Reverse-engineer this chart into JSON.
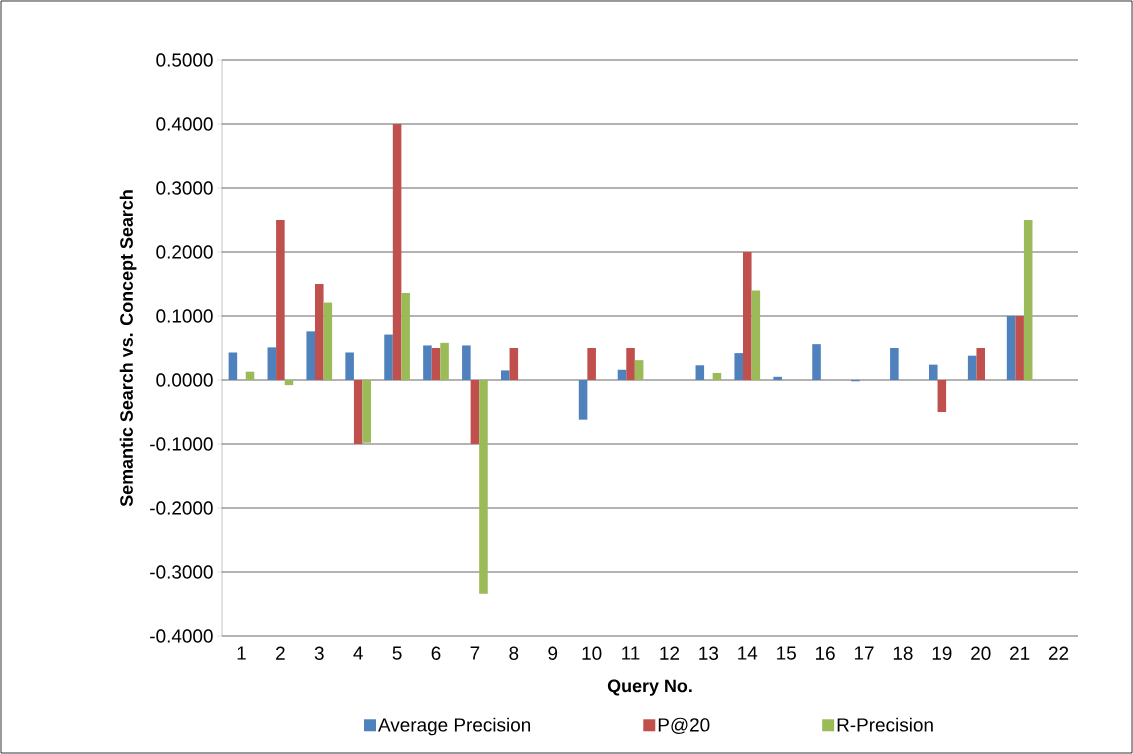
{
  "chart_data": {
    "type": "bar",
    "xlabel": "Query No.",
    "ylabel": "Semantic Search vs. Concept Search",
    "categories": [
      "1",
      "2",
      "3",
      "4",
      "5",
      "6",
      "7",
      "8",
      "9",
      "10",
      "11",
      "12",
      "13",
      "14",
      "15",
      "16",
      "17",
      "18",
      "19",
      "20",
      "21",
      "22"
    ],
    "series": [
      {
        "name": "Average Precision",
        "color": "#4f81bd",
        "values": [
          0.043,
          0.051,
          0.076,
          0.043,
          0.071,
          0.054,
          0.054,
          0.015,
          0,
          -0.062,
          0.016,
          0,
          0.023,
          0.042,
          0.005,
          0.056,
          -0.002,
          0.05,
          0.024,
          0.038,
          0.1,
          0
        ]
      },
      {
        "name": "P@20",
        "color": "#c0504d",
        "values": [
          0,
          0.25,
          0.15,
          -0.1,
          0.4,
          0.05,
          -0.1,
          0.05,
          0,
          0.05,
          0.05,
          0,
          0,
          0.2,
          0,
          0,
          0,
          0,
          -0.05,
          0.05,
          0.1,
          0
        ]
      },
      {
        "name": "R-Precision",
        "color": "#9bbb59",
        "values": [
          0.013,
          -0.008,
          0.121,
          -0.098,
          0.136,
          0.058,
          -0.334,
          0,
          0,
          0,
          0.031,
          0,
          0.011,
          0.14,
          0,
          0,
          0,
          0,
          0,
          0,
          0.25,
          0
        ]
      }
    ],
    "ylim": [
      -0.4,
      0.5
    ],
    "yticks": [
      {
        "value": -0.4,
        "label": "-0.4000"
      },
      {
        "value": -0.3,
        "label": "-0.3000"
      },
      {
        "value": -0.2,
        "label": "-0.2000"
      },
      {
        "value": -0.1,
        "label": "-0.1000"
      },
      {
        "value": 0,
        "label": "0.0000"
      },
      {
        "value": 0.1,
        "label": "0.1000"
      },
      {
        "value": 0.2,
        "label": "0.2000"
      },
      {
        "value": 0.3,
        "label": "0.3000"
      },
      {
        "value": 0.4,
        "label": "0.4000"
      },
      {
        "value": 0.5,
        "label": "0.5000"
      }
    ],
    "grid": "y",
    "legend": "bottom"
  }
}
